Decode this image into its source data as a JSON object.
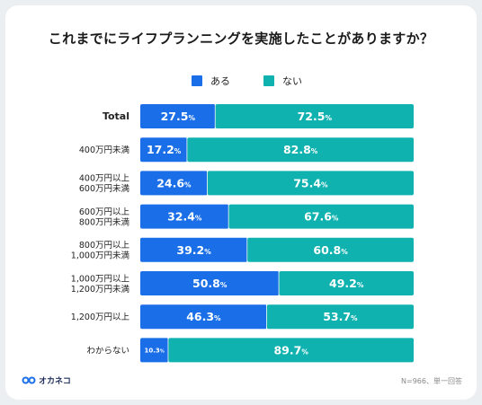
{
  "title": "これまでにライフプランニングを実施したことがありますか？",
  "colors": {
    "aru": "#1a6fe8",
    "nai": "#10b2b0"
  },
  "legend": {
    "aru": "ある",
    "nai": "ない"
  },
  "chart_data": {
    "type": "bar",
    "orientation": "horizontal",
    "stacked": true,
    "percent_suffix": "%",
    "categories": [
      [
        "Total"
      ],
      [
        "400万円未満"
      ],
      [
        "400万円以上",
        "600万円未満"
      ],
      [
        "600万円以上",
        "800万円未満"
      ],
      [
        "800万円以上",
        "1,000万円未満"
      ],
      [
        "1,000万円以上",
        "1,200万円未満"
      ],
      [
        "1,200万円以上"
      ],
      [
        "わからない"
      ]
    ],
    "series": [
      {
        "name": "ある",
        "values": [
          27.5,
          17.2,
          24.6,
          32.4,
          39.2,
          50.8,
          46.3,
          10.3
        ]
      },
      {
        "name": "ない",
        "values": [
          72.5,
          82.8,
          75.4,
          67.6,
          60.8,
          49.2,
          53.7,
          89.7
        ]
      }
    ],
    "xlim": [
      0,
      100
    ],
    "legend_position": "top-center",
    "grid": false
  },
  "footer": {
    "note": "N=966、単一回答",
    "brand": "オカネコ"
  }
}
